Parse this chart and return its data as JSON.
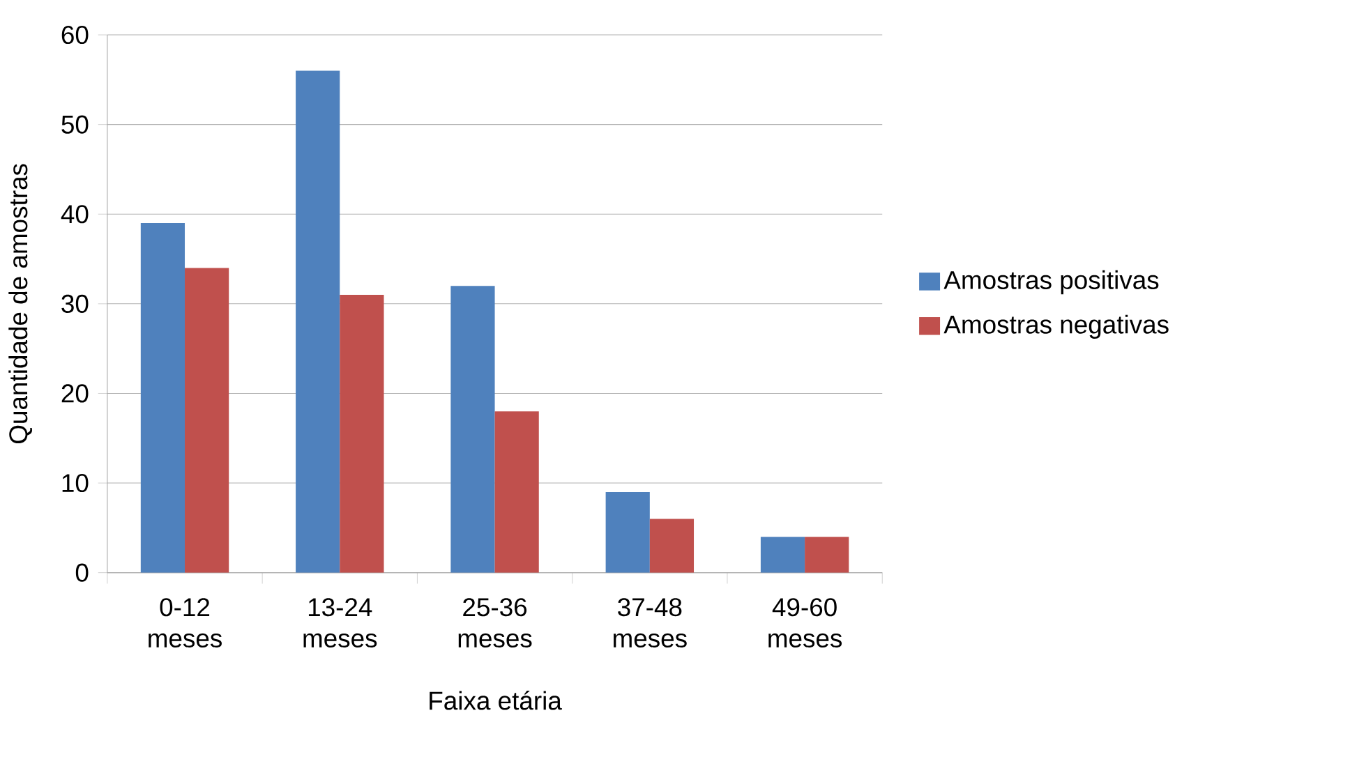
{
  "chart_data": {
    "type": "bar",
    "xlabel": "Faixa etária",
    "ylabel": "Quantidade de amostras",
    "categories": [
      "0-12 meses",
      "13-24 meses",
      "25-36 meses",
      "37-48 meses",
      "49-60 meses"
    ],
    "series": [
      {
        "name": "Amostras positivas",
        "color": "#4f81bd",
        "values": [
          39,
          56,
          32,
          9,
          4
        ]
      },
      {
        "name": "Amostras negativas",
        "color": "#c0504d",
        "values": [
          34,
          31,
          18,
          6,
          4
        ]
      }
    ],
    "ylim": [
      0,
      60
    ],
    "yticks": [
      0,
      10,
      20,
      30,
      40,
      50,
      60
    ],
    "grid": "y",
    "legend": "right"
  }
}
